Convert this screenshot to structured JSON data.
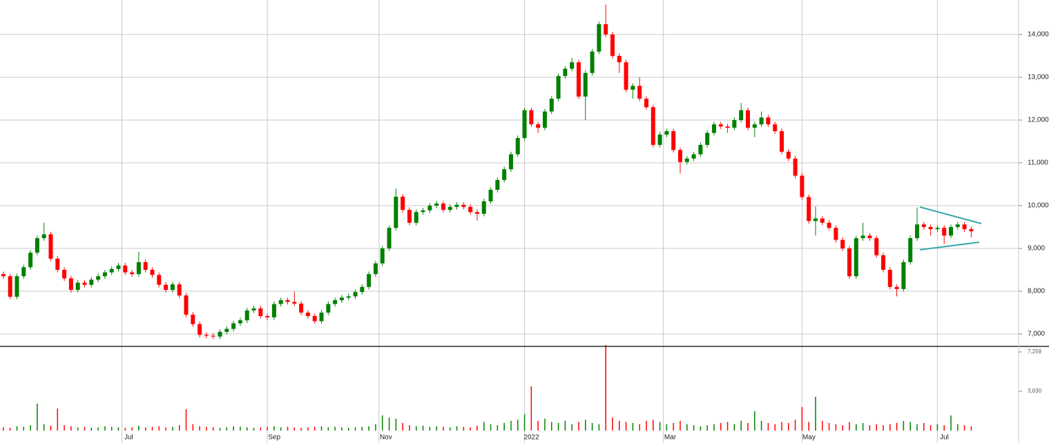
{
  "chart_data": {
    "type": "candlestick",
    "up_color": "#008000",
    "down_color": "#ff0000",
    "grid": true,
    "x": [
      0,
      2,
      4,
      6,
      8,
      10,
      12,
      14,
      16,
      18,
      20,
      22,
      24,
      26,
      28,
      30,
      32,
      34,
      36,
      38,
      40,
      42,
      44,
      46,
      48,
      50,
      52,
      54,
      56,
      58,
      60,
      62,
      64,
      66,
      68,
      70,
      72,
      74,
      76,
      78,
      80,
      82,
      84,
      86,
      88,
      90,
      92,
      94,
      96,
      98,
      100,
      102,
      104,
      106,
      108,
      110,
      112,
      114,
      116,
      118,
      120,
      122,
      124,
      126,
      128,
      130,
      132,
      134,
      136,
      138,
      140,
      142,
      144,
      146,
      148,
      150,
      152,
      154,
      156,
      158,
      160,
      162,
      164,
      166,
      168,
      170,
      172,
      174,
      176,
      178,
      180,
      182,
      184,
      186,
      188,
      190,
      192,
      194,
      196,
      198,
      200,
      202,
      204,
      206,
      208,
      210,
      212,
      214,
      216,
      218,
      220,
      222,
      224,
      226,
      228,
      230,
      232,
      234,
      236,
      238,
      240,
      242,
      244,
      246,
      248,
      250,
      252,
      254,
      256,
      258,
      260,
      262,
      264,
      266,
      268,
      270,
      272,
      274,
      276,
      278,
      280,
      282,
      284,
      286
    ],
    "open": [
      8400,
      8350,
      7870,
      8350,
      8560,
      8900,
      9240,
      9330,
      8760,
      8500,
      8300,
      8030,
      8200,
      8150,
      8270,
      8350,
      8440,
      8520,
      8600,
      8440,
      8400,
      8680,
      8500,
      8380,
      8150,
      8030,
      8160,
      7900,
      7450,
      7230,
      6980,
      6960,
      6940,
      7050,
      7120,
      7250,
      7320,
      7550,
      7600,
      7420,
      7390,
      7700,
      7790,
      7750,
      7710,
      7500,
      7420,
      7300,
      7500,
      7700,
      7790,
      7850,
      7880,
      7980,
      8100,
      8400,
      8650,
      9000,
      9480,
      10210,
      9900,
      9600,
      9850,
      9890,
      10000,
      10050,
      9900,
      9970,
      10020,
      9970,
      9850,
      9810,
      10100,
      10370,
      10600,
      10850,
      11200,
      11580,
      12230,
      11900,
      11820,
      12200,
      12500,
      13030,
      13200,
      13350,
      12550,
      13100,
      13600,
      14240,
      14000,
      13500,
      13350,
      12710,
      12800,
      12500,
      12300,
      11420,
      11660,
      11740,
      11300,
      11020,
      11100,
      11200,
      11420,
      11700,
      11900,
      11850,
      11820,
      12000,
      12230,
      11820,
      11900,
      12060,
      11900,
      11740,
      11260,
      11100,
      10700,
      10200,
      9640,
      9700,
      9600,
      9480,
      9200,
      9000,
      8350,
      9240,
      9300,
      9240,
      8840,
      8500,
      8100,
      8050,
      8680,
      9240,
      9560,
      9500,
      9450,
      9480,
      9300,
      9500,
      9560,
      9450
    ],
    "high": [
      8460,
      8410,
      8410,
      8620,
      8960,
      9300,
      9600,
      9390,
      8820,
      8560,
      8360,
      8260,
      8260,
      8330,
      8410,
      8500,
      8580,
      8660,
      8660,
      8500,
      8920,
      8740,
      8560,
      8440,
      8210,
      8220,
      8220,
      7960,
      7510,
      7290,
      7040,
      7020,
      7110,
      7180,
      7310,
      7380,
      7610,
      7660,
      7660,
      7480,
      7760,
      7850,
      7850,
      7990,
      7770,
      7560,
      7480,
      7560,
      7760,
      7850,
      7910,
      7940,
      8040,
      8160,
      8460,
      8710,
      9060,
      9540,
      10400,
      10270,
      9960,
      9910,
      9950,
      10060,
      10110,
      10110,
      10030,
      10080,
      10080,
      10030,
      9910,
      10160,
      10430,
      10660,
      10910,
      11260,
      11640,
      12290,
      12290,
      11960,
      12260,
      12560,
      13090,
      13260,
      13450,
      13410,
      13160,
      13660,
      14300,
      14700,
      14060,
      13560,
      13410,
      12860,
      13000,
      12560,
      12360,
      11720,
      11800,
      11800,
      11360,
      11160,
      11260,
      11480,
      11760,
      11960,
      11960,
      11910,
      12060,
      12400,
      12290,
      11960,
      12200,
      12120,
      11960,
      11800,
      11320,
      11160,
      10760,
      10260,
      9980,
      9760,
      9660,
      9540,
      9260,
      9060,
      9300,
      9600,
      9360,
      9300,
      8900,
      8560,
      8160,
      8740,
      9300,
      9960,
      9620,
      9560,
      9540,
      9540,
      9560,
      9620,
      9620,
      9510
    ],
    "low": [
      8290,
      7810,
      7810,
      8290,
      8500,
      8840,
      9180,
      8700,
      8440,
      8240,
      7970,
      7970,
      8090,
      8090,
      8210,
      8290,
      8380,
      8460,
      8380,
      8340,
      8340,
      8440,
      8320,
      8090,
      7970,
      7970,
      7840,
      7390,
      7170,
      6920,
      6900,
      6880,
      6880,
      6990,
      7060,
      7190,
      7260,
      7490,
      7360,
      7330,
      7330,
      7640,
      7690,
      7650,
      7440,
      7360,
      7240,
      7240,
      7440,
      7640,
      7730,
      7790,
      7820,
      7920,
      8040,
      8340,
      8590,
      8940,
      9420,
      9840,
      9540,
      9540,
      9790,
      9830,
      9940,
      9840,
      9840,
      9910,
      9910,
      9790,
      9650,
      9750,
      10040,
      10310,
      10540,
      10790,
      11140,
      11520,
      11840,
      11700,
      11760,
      12140,
      12440,
      12970,
      13140,
      12490,
      12000,
      13040,
      13540,
      13940,
      13440,
      13100,
      12650,
      12500,
      12440,
      12240,
      11360,
      11360,
      11600,
      11240,
      10750,
      10960,
      11040,
      11140,
      11360,
      11640,
      11790,
      11700,
      11760,
      11940,
      11760,
      11600,
      11840,
      11840,
      11680,
      11200,
      11040,
      10640,
      10140,
      9580,
      9300,
      9540,
      9420,
      9140,
      8940,
      8290,
      8290,
      9180,
      9180,
      8780,
      8440,
      8040,
      7880,
      7990,
      8620,
      9180,
      9440,
      9300,
      9390,
      9100,
      9240,
      9440,
      9390,
      9260
    ],
    "close": [
      8350,
      7870,
      8350,
      8560,
      8900,
      9240,
      9330,
      8760,
      8500,
      8300,
      8030,
      8200,
      8150,
      8270,
      8350,
      8440,
      8520,
      8600,
      8440,
      8400,
      8680,
      8500,
      8380,
      8150,
      8030,
      8160,
      7900,
      7450,
      7230,
      6980,
      6960,
      6940,
      7050,
      7120,
      7250,
      7320,
      7550,
      7600,
      7420,
      7390,
      7700,
      7790,
      7750,
      7710,
      7500,
      7420,
      7300,
      7500,
      7700,
      7790,
      7850,
      7880,
      7980,
      8100,
      8400,
      8650,
      9000,
      9480,
      10210,
      9900,
      9600,
      9850,
      9890,
      10000,
      10050,
      9900,
      9970,
      10020,
      9970,
      9850,
      9810,
      10100,
      10370,
      10600,
      10850,
      11200,
      11580,
      12230,
      11900,
      11820,
      12200,
      12500,
      13030,
      13200,
      13350,
      12550,
      13100,
      13600,
      14240,
      14000,
      13500,
      13350,
      12710,
      12800,
      12500,
      12300,
      11420,
      11660,
      11740,
      11300,
      11020,
      11100,
      11200,
      11420,
      11700,
      11900,
      11850,
      11820,
      12000,
      12230,
      11820,
      11900,
      12060,
      11900,
      11740,
      11260,
      11100,
      10700,
      10200,
      9640,
      9700,
      9600,
      9480,
      9200,
      9000,
      8350,
      9240,
      9300,
      9240,
      8840,
      8500,
      8100,
      8050,
      8680,
      9240,
      9560,
      9500,
      9450,
      9480,
      9300,
      9500,
      9560,
      9450,
      9400
    ],
    "volume": [
      300,
      250,
      400,
      350,
      500,
      2480,
      600,
      450,
      2040,
      500,
      400,
      300,
      350,
      250,
      300,
      400,
      350,
      300,
      250,
      300,
      450,
      300,
      350,
      400,
      300,
      350,
      500,
      1970,
      600,
      400,
      350,
      300,
      250,
      300,
      400,
      350,
      300,
      250,
      300,
      350,
      400,
      300,
      350,
      300,
      250,
      300,
      350,
      400,
      300,
      350,
      300,
      250,
      300,
      350,
      400,
      600,
      1400,
      1200,
      1100,
      700,
      500,
      400,
      450,
      350,
      400,
      350,
      300,
      400,
      350,
      300,
      450,
      800,
      600,
      500,
      700,
      900,
      1000,
      1500,
      4080,
      900,
      1100,
      800,
      700,
      900,
      600,
      800,
      1000,
      700,
      600,
      7900,
      1200,
      900,
      800,
      700,
      600,
      900,
      1000,
      800,
      600,
      700,
      900,
      600,
      500,
      400,
      500,
      600,
      700,
      800,
      600,
      900,
      700,
      1800,
      900,
      700,
      600,
      800,
      700,
      1000,
      2170,
      800,
      3120,
      900,
      700,
      600,
      500,
      800,
      600,
      700,
      500,
      600,
      500,
      600,
      700,
      900,
      800,
      600,
      700,
      500,
      600,
      500,
      1400,
      600,
      500,
      400
    ],
    "xlim": [
      -1,
      300
    ],
    "xticks": [
      {
        "value": 35,
        "label": "Jul"
      },
      {
        "value": 78,
        "label": "Sep"
      },
      {
        "value": 111,
        "label": "Nov"
      },
      {
        "value": 154,
        "label": "2022"
      },
      {
        "value": 195,
        "label": "Mar"
      },
      {
        "value": 236,
        "label": "May"
      },
      {
        "value": 276,
        "label": "Jul"
      }
    ],
    "ylim": [
      6710,
      14806
    ],
    "yticks": [
      {
        "value": 7000,
        "label": "7,000"
      },
      {
        "value": 8000,
        "label": "8,000"
      },
      {
        "value": 9000,
        "label": "9,000"
      },
      {
        "value": 10000,
        "label": "10,000"
      },
      {
        "value": 11000,
        "label": "11,000"
      },
      {
        "value": 12000,
        "label": "12,000"
      },
      {
        "value": 13000,
        "label": "13,000"
      },
      {
        "value": 14000,
        "label": "14,000"
      }
    ],
    "volume_lim": [
      0,
      7770
    ],
    "volume_ticks": [
      {
        "value": 3630,
        "label": "3,630"
      },
      {
        "value": 7259,
        "label": "7,259"
      }
    ]
  }
}
